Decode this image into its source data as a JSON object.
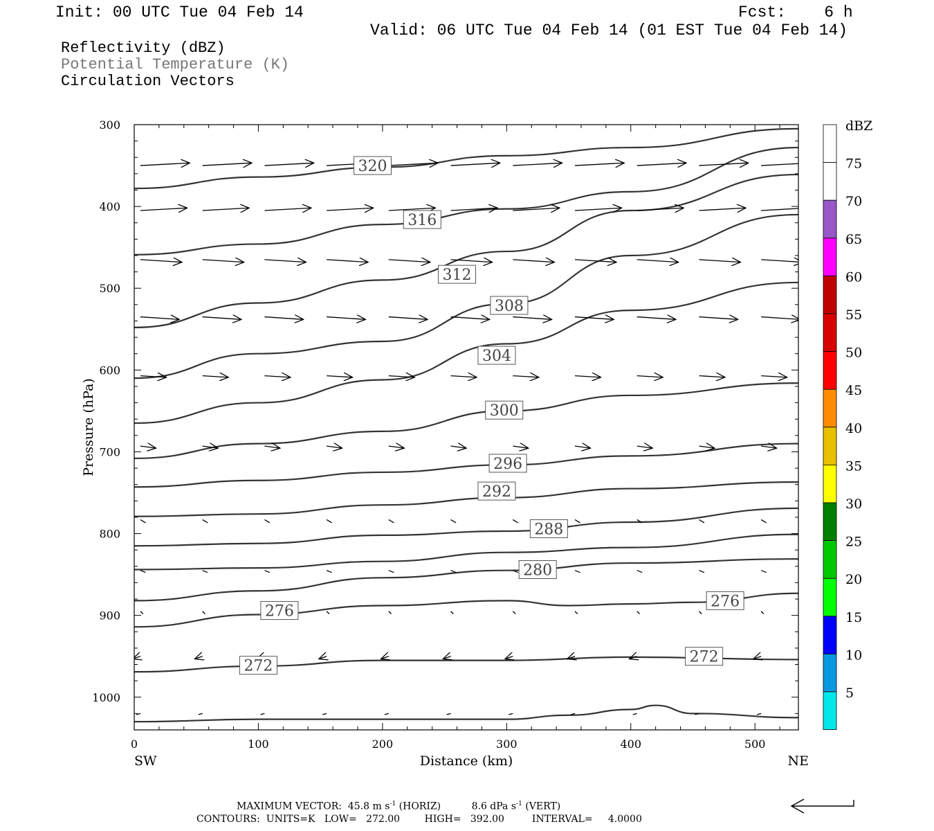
{
  "header": {
    "init": "Init: 00 UTC Tue 04 Feb 14",
    "fcst": "Fcst:    6 h",
    "valid": "Valid: 06 UTC Tue 04 Feb 14 (01 EST Tue 04 Feb 14)"
  },
  "fields": {
    "reflectivity": "Reflectivity (dBZ)",
    "theta": "Potential Temperature (K)",
    "vectors": "Circulation Vectors"
  },
  "footer": {
    "max_vector": "MAXIMUM VECTOR:  45.8 m s",
    "horiz": "(HORIZ)",
    "vert_val": "8.6 dPa s",
    "vert": "(VERT)",
    "exponent": "-1",
    "contours": "CONTOURS:  UNITS=K   LOW=   272.00        HIGH=   392.00         INTERVAL=     4.0000"
  },
  "colorbar": {
    "title": "dBZ",
    "levels": [
      {
        "label": "5",
        "color": "#00e8e8"
      },
      {
        "label": "10",
        "color": "#0898e0"
      },
      {
        "label": "15",
        "color": "#0000ff"
      },
      {
        "label": "20",
        "color": "#00ff00"
      },
      {
        "label": "25",
        "color": "#00c800"
      },
      {
        "label": "30",
        "color": "#008000"
      },
      {
        "label": "35",
        "color": "#ffff00"
      },
      {
        "label": "40",
        "color": "#e8c000"
      },
      {
        "label": "45",
        "color": "#ff8c00"
      },
      {
        "label": "50",
        "color": "#ff0000"
      },
      {
        "label": "55",
        "color": "#d80000"
      },
      {
        "label": "60",
        "color": "#c00000"
      },
      {
        "label": "65",
        "color": "#ff00ff"
      },
      {
        "label": "70",
        "color": "#9858c8"
      },
      {
        "label": "75",
        "color": "#ffffff"
      }
    ]
  },
  "chart_data": {
    "type": "line",
    "ylabel": "Pressure (hPa)",
    "xlabel": "Distance (km)",
    "x_left_label": "SW",
    "x_right_label": "NE",
    "xlim": [
      0,
      535
    ],
    "ylim": [
      300,
      1040
    ],
    "y_inverted": true,
    "xticks": [
      0,
      100,
      200,
      300,
      400,
      500
    ],
    "yticks": [
      300,
      400,
      500,
      600,
      700,
      800,
      900,
      1000
    ],
    "contour_color": "#333333",
    "isentropes": [
      {
        "value": 320,
        "label": "320",
        "label_at": [
          192,
          350
        ],
        "points": [
          [
            0,
            378
          ],
          [
            100,
            364
          ],
          [
            200,
            352
          ],
          [
            300,
            338
          ],
          [
            400,
            328
          ],
          [
            535,
            305
          ]
        ]
      },
      {
        "value": 316,
        "label": "316",
        "label_at": [
          232,
          416
        ],
        "points": [
          [
            0,
            459
          ],
          [
            100,
            446
          ],
          [
            200,
            422
          ],
          [
            300,
            403
          ],
          [
            400,
            382
          ],
          [
            535,
            328
          ]
        ]
      },
      {
        "value": 312,
        "label": "312",
        "label_at": [
          260,
          483
        ],
        "points": [
          [
            0,
            548
          ],
          [
            100,
            518
          ],
          [
            200,
            490
          ],
          [
            300,
            455
          ],
          [
            400,
            405
          ],
          [
            535,
            361
          ]
        ]
      },
      {
        "value": 308,
        "label": "308",
        "label_at": [
          302,
          521
        ],
        "points": [
          [
            0,
            610
          ],
          [
            100,
            580
          ],
          [
            200,
            565
          ],
          [
            300,
            519
          ],
          [
            400,
            460
          ],
          [
            535,
            410
          ]
        ]
      },
      {
        "value": 304,
        "label": "304",
        "label_at": [
          292,
          582
        ],
        "points": [
          [
            0,
            665
          ],
          [
            100,
            640
          ],
          [
            200,
            612
          ],
          [
            300,
            568
          ],
          [
            400,
            527
          ],
          [
            535,
            493
          ]
        ]
      },
      {
        "value": 300,
        "label": "300",
        "label_at": [
          298,
          649
        ],
        "points": [
          [
            0,
            708
          ],
          [
            100,
            690
          ],
          [
            200,
            675
          ],
          [
            300,
            650
          ],
          [
            400,
            631
          ],
          [
            535,
            616
          ]
        ]
      },
      {
        "value": 296,
        "label": "296",
        "label_at": [
          301,
          714
        ],
        "points": [
          [
            0,
            743
          ],
          [
            100,
            735
          ],
          [
            200,
            725
          ],
          [
            300,
            716
          ],
          [
            400,
            705
          ],
          [
            535,
            690
          ]
        ]
      },
      {
        "value": 292,
        "label": "292",
        "label_at": [
          292,
          748
        ],
        "points": [
          [
            0,
            779
          ],
          [
            100,
            776
          ],
          [
            200,
            765
          ],
          [
            300,
            756
          ],
          [
            400,
            745
          ],
          [
            535,
            737
          ]
        ]
      },
      {
        "value": 288,
        "label": "288",
        "label_at": [
          334,
          794
        ],
        "points": [
          [
            0,
            815
          ],
          [
            100,
            812
          ],
          [
            200,
            802
          ],
          [
            300,
            797
          ],
          [
            400,
            786
          ],
          [
            535,
            769
          ]
        ]
      },
      {
        "value": 284,
        "label": "",
        "label_at": null,
        "points": [
          [
            0,
            844
          ],
          [
            100,
            842
          ],
          [
            200,
            834
          ],
          [
            300,
            823
          ],
          [
            400,
            817
          ],
          [
            535,
            801
          ]
        ]
      },
      {
        "value": 280,
        "label": "280",
        "label_at": [
          325,
          844
        ],
        "points": [
          [
            0,
            882
          ],
          [
            100,
            870
          ],
          [
            200,
            854
          ],
          [
            300,
            845
          ],
          [
            400,
            836
          ],
          [
            535,
            831
          ]
        ]
      },
      {
        "value": 276,
        "label": "276",
        "label_at": [
          117,
          894
        ],
        "points": [
          [
            0,
            914
          ],
          [
            100,
            899
          ],
          [
            200,
            888
          ],
          [
            300,
            882
          ],
          [
            350,
            888
          ],
          [
            400,
            886
          ],
          [
            450,
            884
          ],
          [
            535,
            873
          ]
        ]
      },
      {
        "value": 276,
        "label": "276",
        "label_at": [
          476,
          882
        ],
        "points": []
      },
      {
        "value": 272,
        "label": "272",
        "label_at": [
          100,
          961
        ],
        "points": [
          [
            0,
            969
          ],
          [
            100,
            962
          ],
          [
            200,
            955
          ],
          [
            300,
            955
          ],
          [
            400,
            951
          ],
          [
            535,
            954
          ]
        ]
      },
      {
        "value": 272,
        "label": "272",
        "label_at": [
          459,
          950
        ],
        "points": []
      },
      {
        "value": 268,
        "label": "",
        "label_at": null,
        "points": [
          [
            0,
            1030
          ],
          [
            100,
            1027
          ],
          [
            200,
            1027
          ],
          [
            300,
            1027
          ],
          [
            350,
            1022
          ],
          [
            400,
            1015
          ],
          [
            420,
            1010
          ],
          [
            450,
            1020
          ],
          [
            535,
            1025
          ]
        ]
      }
    ],
    "vector_rows": [
      {
        "p": 350,
        "u": 0.95,
        "w": -0.05
      },
      {
        "p": 405,
        "u": 0.9,
        "w": -0.05
      },
      {
        "p": 465,
        "u": 0.8,
        "w": 0.05
      },
      {
        "p": 535,
        "u": 0.75,
        "w": 0.05
      },
      {
        "p": 607,
        "u": 0.5,
        "w": 0.03
      },
      {
        "p": 693,
        "u": 0.3,
        "w": 0.04
      },
      {
        "p": 783,
        "u": 0.1,
        "w": 0.06
      },
      {
        "p": 845,
        "u": 0.1,
        "w": 0.04
      },
      {
        "p": 895,
        "u": 0.05,
        "w": 0.05
      },
      {
        "p": 950,
        "u": -0.15,
        "w": 0.05
      },
      {
        "p": 1020,
        "u": -0.08,
        "w": 0.02
      }
    ]
  }
}
